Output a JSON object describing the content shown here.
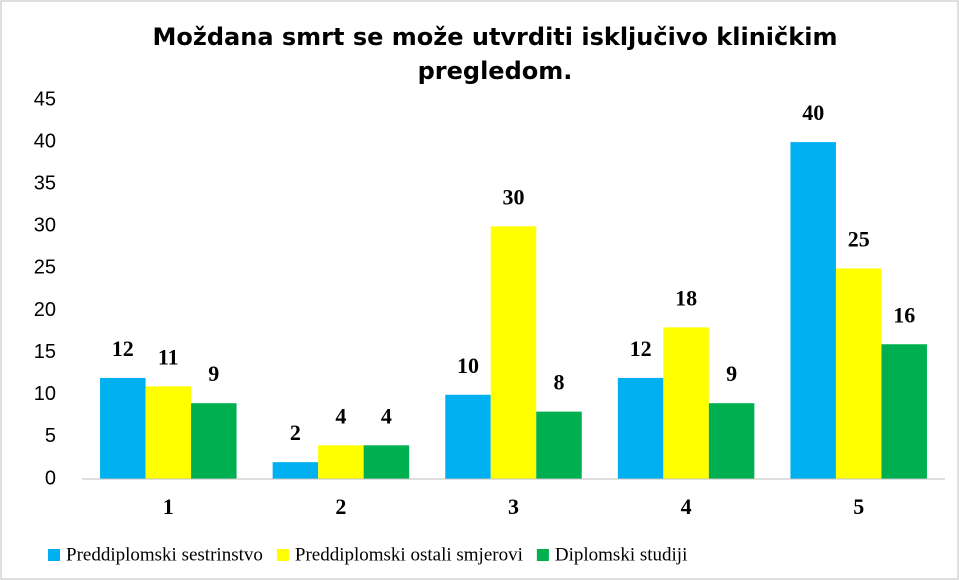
{
  "chart_data": {
    "type": "bar",
    "title": "Moždana smrt se može utvrditi isključivo kliničkim pregledom.",
    "categories": [
      "1",
      "2",
      "3",
      "4",
      "5"
    ],
    "series": [
      {
        "name": "Preddiplomski sestrinstvo",
        "color": "#00b0f0",
        "values": [
          12,
          2,
          10,
          12,
          40
        ]
      },
      {
        "name": "Preddiplomski ostali smjerovi",
        "color": "#ffff00",
        "values": [
          11,
          4,
          30,
          18,
          25
        ]
      },
      {
        "name": "Diplomski studiji",
        "color": "#00b050",
        "values": [
          9,
          4,
          8,
          9,
          16
        ]
      }
    ],
    "ylim": [
      0,
      45
    ],
    "yticks": [
      0,
      5,
      10,
      15,
      20,
      25,
      30,
      35,
      40,
      45
    ],
    "grid": false,
    "legend": "bottom"
  }
}
